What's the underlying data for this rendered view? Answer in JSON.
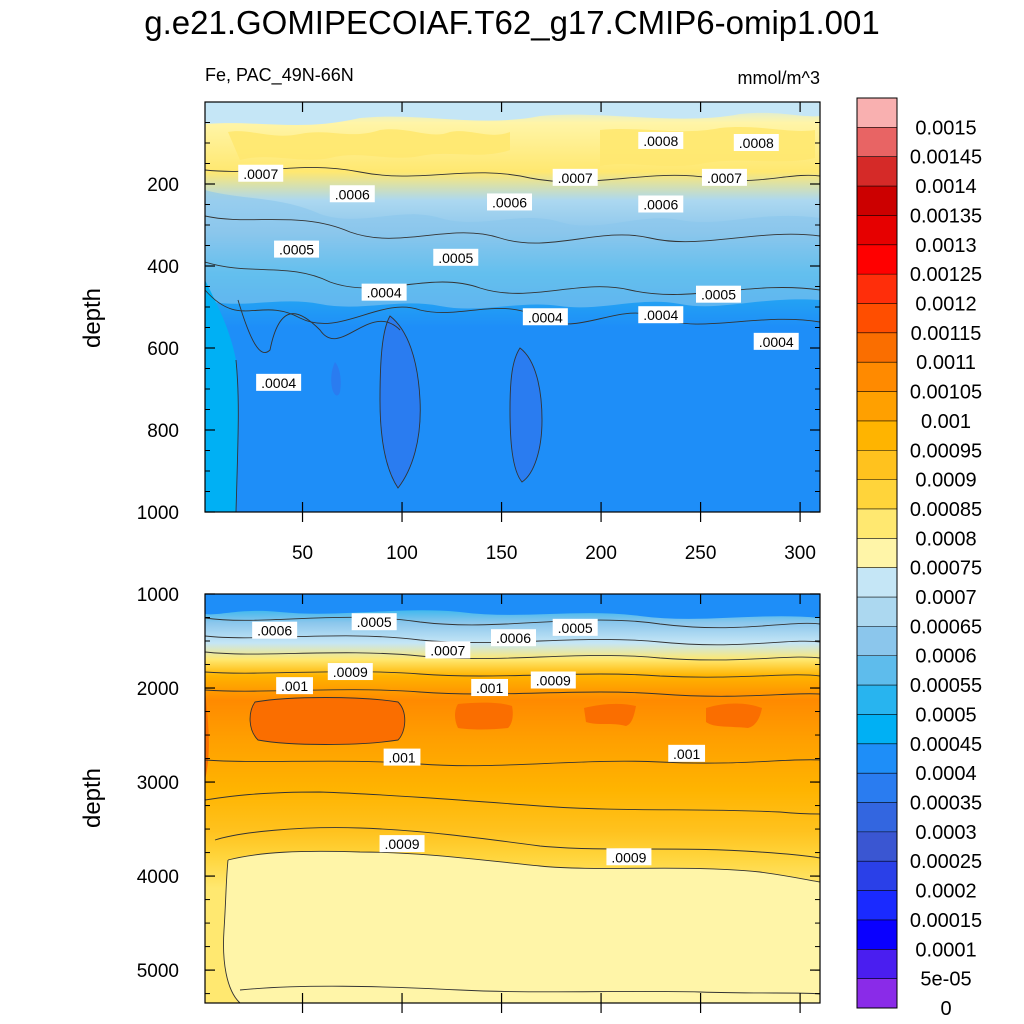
{
  "title": "g.e21.GOMIPECOIAF.T62_g17.CMIP6-omip1.001",
  "chart_data": [
    {
      "type": "contour",
      "panel": "upper",
      "left_label": "Fe, PAC_49N-66N",
      "right_label": "mmol/m^3",
      "ylabel": "depth",
      "xlabel": "",
      "x_range": [
        1,
        310
      ],
      "x_ticks": [
        50,
        100,
        150,
        200,
        250,
        300
      ],
      "ylim": [
        0,
        1000
      ],
      "y_ticks": [
        200,
        400,
        600,
        800,
        1000
      ],
      "y_reversed": true,
      "contour_labels": [
        {
          "text": ".0007",
          "x": 29,
          "y": 175
        },
        {
          "text": ".0006",
          "x": 75,
          "y": 225
        },
        {
          "text": ".0005",
          "x": 47,
          "y": 360
        },
        {
          "text": ".0004",
          "x": 91,
          "y": 465
        },
        {
          "text": ".0005",
          "x": 127,
          "y": 380
        },
        {
          "text": ".0006",
          "x": 154,
          "y": 245
        },
        {
          "text": ".0007",
          "x": 187,
          "y": 185
        },
        {
          "text": ".0004",
          "x": 172,
          "y": 525
        },
        {
          "text": ".0004",
          "x": 38,
          "y": 685
        },
        {
          "text": ".0006",
          "x": 230,
          "y": 250
        },
        {
          "text": ".0007",
          "x": 262,
          "y": 185
        },
        {
          "text": ".0008",
          "x": 230,
          "y": 95
        },
        {
          "text": ".0008",
          "x": 278,
          "y": 100
        },
        {
          "text": ".0004",
          "x": 230,
          "y": 520
        },
        {
          "text": ".0005",
          "x": 259,
          "y": 470
        },
        {
          "text": ".0004",
          "x": 288,
          "y": 585
        }
      ]
    },
    {
      "type": "contour",
      "panel": "lower",
      "ylabel": "depth",
      "xlabel": "",
      "x_range": [
        1,
        310
      ],
      "ylim": [
        1000,
        5350
      ],
      "y_ticks": [
        1000,
        2000,
        3000,
        4000,
        5000
      ],
      "y_reversed": true,
      "contour_labels": [
        {
          "text": ".0006",
          "x": 36,
          "y": 1390
        },
        {
          "text": ".0005",
          "x": 86,
          "y": 1300
        },
        {
          "text": ".0007",
          "x": 123,
          "y": 1600
        },
        {
          "text": ".0006",
          "x": 156,
          "y": 1470
        },
        {
          "text": ".0005",
          "x": 187,
          "y": 1360
        },
        {
          "text": ".0009",
          "x": 74,
          "y": 1830
        },
        {
          "text": ".001",
          "x": 46,
          "y": 1980
        },
        {
          "text": ".001",
          "x": 144,
          "y": 2000
        },
        {
          "text": ".0009",
          "x": 176,
          "y": 1920
        },
        {
          "text": ".001",
          "x": 100,
          "y": 2740
        },
        {
          "text": ".001",
          "x": 243,
          "y": 2700
        },
        {
          "text": ".0009",
          "x": 100,
          "y": 3660
        },
        {
          "text": ".0009",
          "x": 214,
          "y": 3800
        }
      ]
    }
  ],
  "colorbar": {
    "labels": [
      "0.0015",
      "0.00145",
      "0.0014",
      "0.00135",
      "0.0013",
      "0.00125",
      "0.0012",
      "0.00115",
      "0.0011",
      "0.00105",
      "0.001",
      "0.00095",
      "0.0009",
      "0.00085",
      "0.0008",
      "0.00075",
      "0.0007",
      "0.00065",
      "0.0006",
      "0.00055",
      "0.0005",
      "0.00045",
      "0.0004",
      "0.00035",
      "0.0003",
      "0.00025",
      "0.0002",
      "0.00015",
      "0.0001",
      "5e-05",
      "0"
    ],
    "colors": [
      "#f9b0b0",
      "#e86464",
      "#d52a28",
      "#cc0000",
      "#e60000",
      "#ff0000",
      "#ff2e0a",
      "#ff4e00",
      "#fa6e00",
      "#ff8a00",
      "#ffa000",
      "#ffb400",
      "#ffc21e",
      "#ffd43a",
      "#ffe870",
      "#fff5a8",
      "#c5e6f6",
      "#acd8f0",
      "#8bc6ec",
      "#5ebcec",
      "#28b4ef",
      "#00b0f4",
      "#1e8ef8",
      "#2a7cf0",
      "#3366e0",
      "#3a56d2",
      "#2a40e8",
      "#1a2aff",
      "#0a00ff",
      "#4a1ef0",
      "#8a2be8"
    ]
  }
}
